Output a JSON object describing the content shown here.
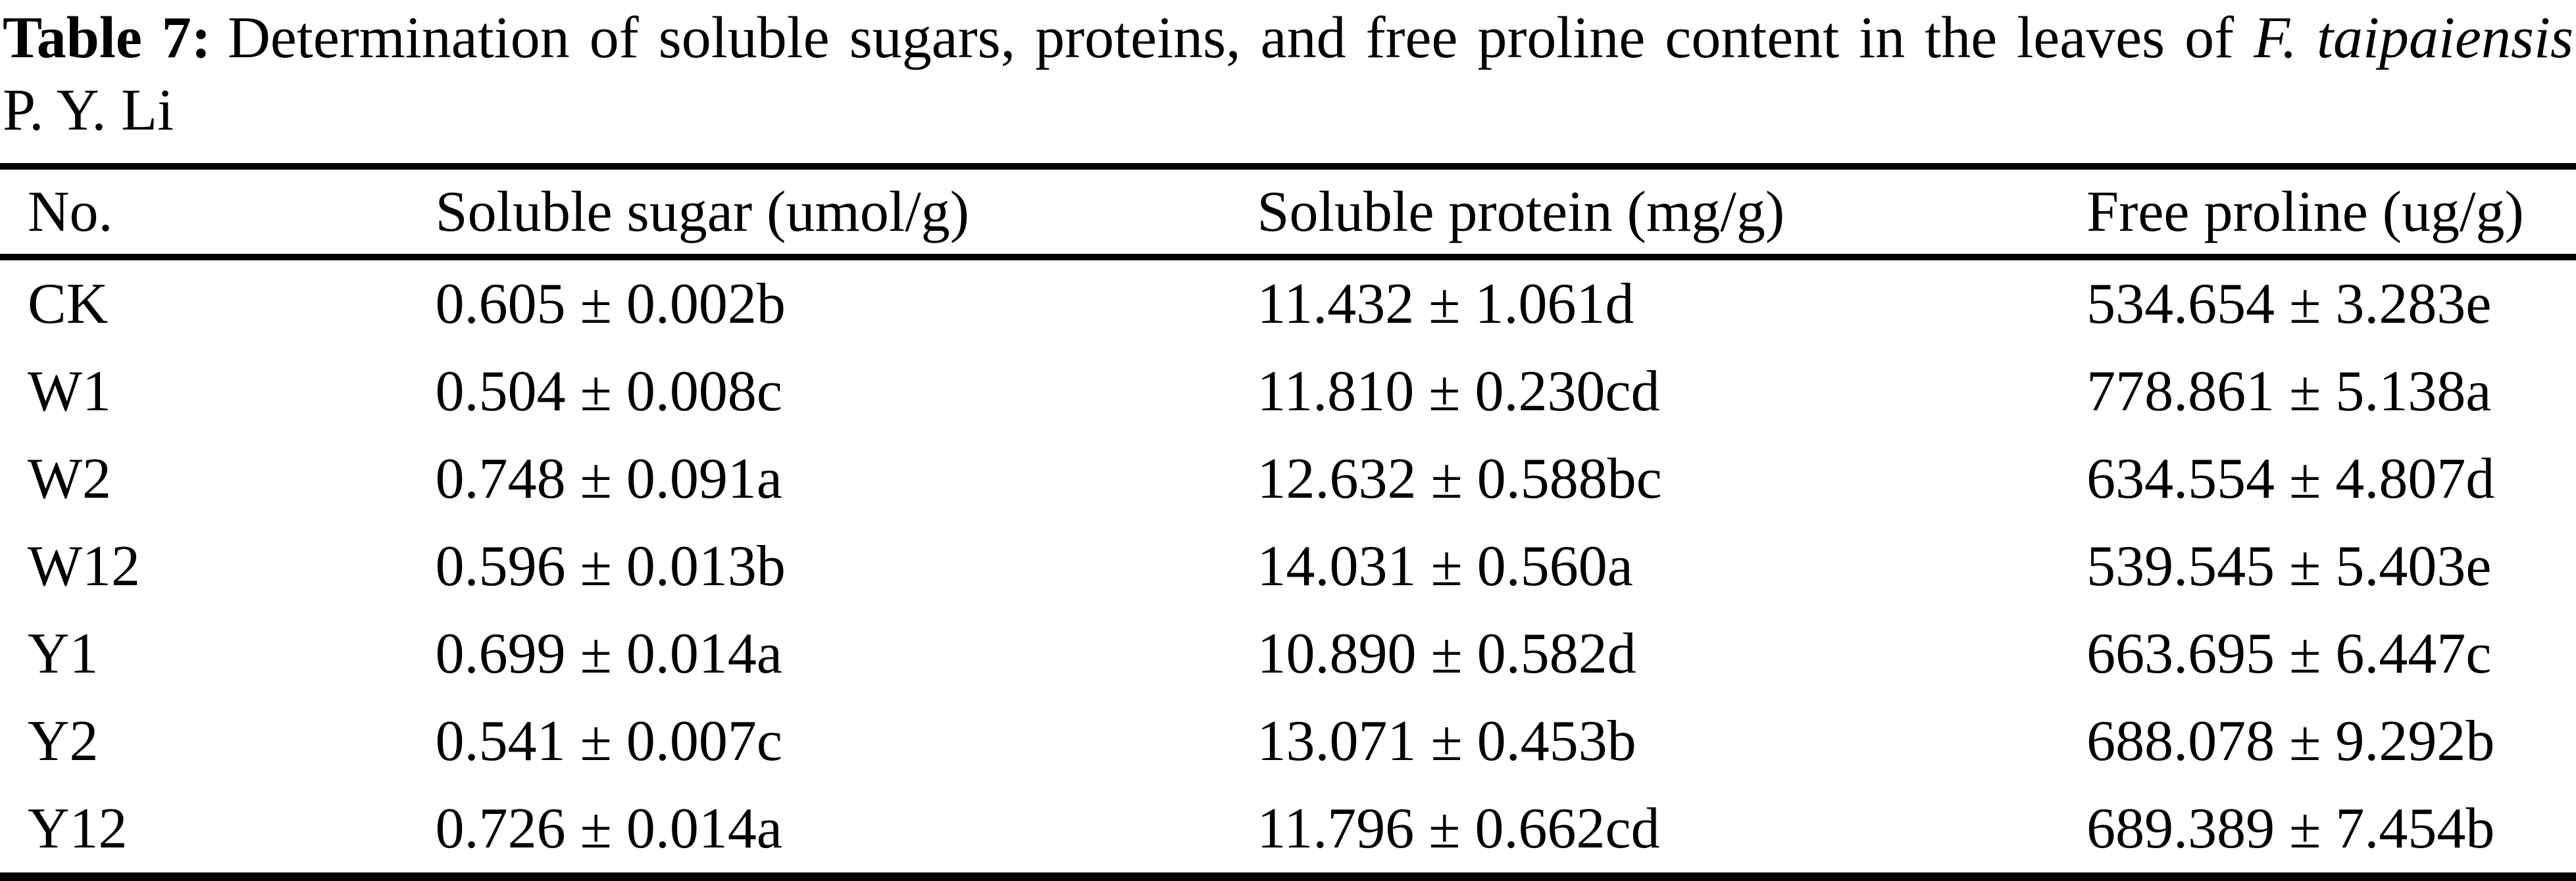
{
  "caption": {
    "label": "Table 7:",
    "line1_text": "Determination of soluble sugars, proteins, and free proline content in the leaves of",
    "species_italic": "F. taipaiensis",
    "line2": "P. Y. Li"
  },
  "table": {
    "columns": [
      "No.",
      "Soluble sugar (umol/g)",
      "Soluble protein (mg/g)",
      "Free proline (ug/g)"
    ],
    "rows": [
      [
        "CK",
        "0.605 ± 0.002b",
        "11.432 ± 1.061d",
        "534.654 ± 3.283e"
      ],
      [
        "W1",
        "0.504 ± 0.008c",
        "11.810 ± 0.230cd",
        "778.861 ± 5.138a"
      ],
      [
        "W2",
        "0.748 ± 0.091a",
        "12.632 ± 0.588bc",
        "634.554 ± 4.807d"
      ],
      [
        "W12",
        "0.596 ± 0.013b",
        "14.031 ± 0.560a",
        "539.545 ± 5.403e"
      ],
      [
        "Y1",
        "0.699 ± 0.014a",
        "10.890 ± 0.582d",
        "663.695 ± 6.447c"
      ],
      [
        "Y2",
        "0.541 ± 0.007c",
        "13.071 ± 0.453b",
        "688.078 ± 9.292b"
      ],
      [
        "Y12",
        "0.726 ± 0.014a",
        "11.796 ± 0.662cd",
        "689.389 ± 7.454b"
      ]
    ]
  }
}
